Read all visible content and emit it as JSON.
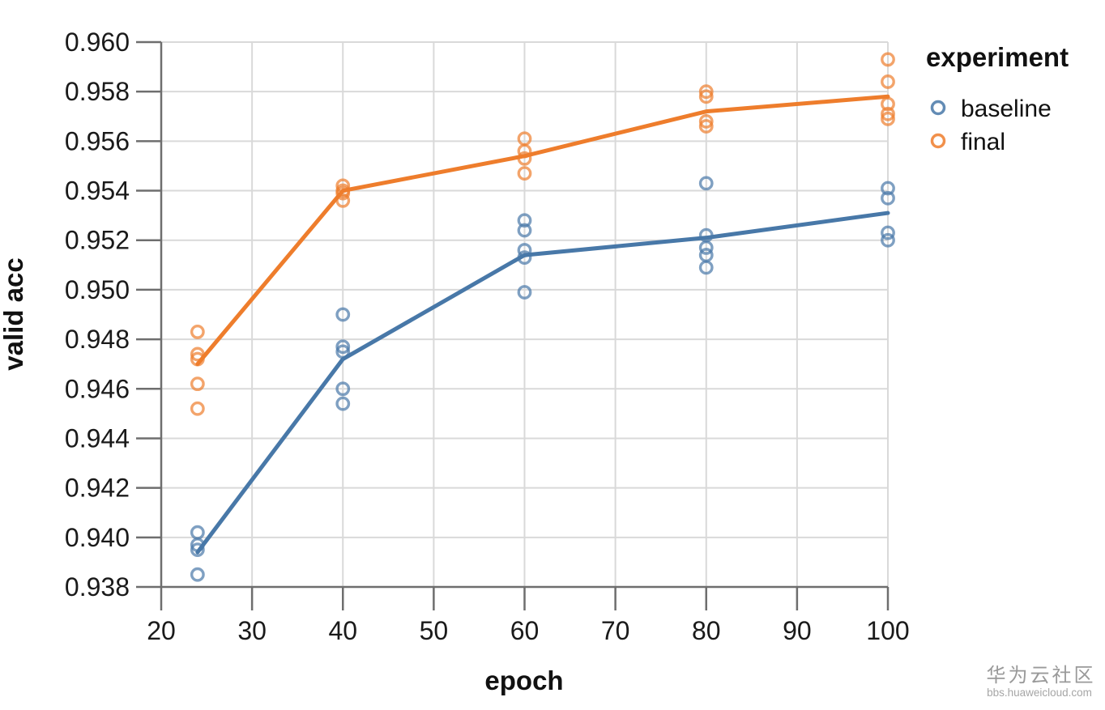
{
  "watermark": {
    "title": "华为云社区",
    "subtitle": "bbs.huaweicloud.com"
  },
  "chart_data": {
    "type": "scatter",
    "subtype": "scatter-with-trend-lines",
    "title": "",
    "xlabel": "epoch",
    "ylabel": "valid acc",
    "legend_title": "experiment",
    "legend_position": "right",
    "grid": true,
    "xlim": [
      20,
      100
    ],
    "ylim": [
      0.938,
      0.96
    ],
    "x_ticks": [
      20,
      30,
      40,
      50,
      60,
      70,
      80,
      90,
      100
    ],
    "y_ticks": [
      0.938,
      0.94,
      0.942,
      0.944,
      0.946,
      0.948,
      0.95,
      0.952,
      0.954,
      0.956,
      0.958,
      0.96
    ],
    "colors": {
      "grid": "#d9d9d9",
      "axis": "#6e6e6e",
      "tick_text": "#1a1a1a",
      "baseline": "#4878a8",
      "final": "#ee7d2c",
      "watermark": "#9a9a9a"
    },
    "series": [
      {
        "name": "baseline",
        "color": "#4878a8",
        "trend_line": [
          [
            24,
            0.9394
          ],
          [
            40,
            0.9472
          ],
          [
            60,
            0.9514
          ],
          [
            80,
            0.9521
          ],
          [
            100,
            0.9531
          ]
        ],
        "points": [
          [
            24,
            0.9402
          ],
          [
            24,
            0.9397
          ],
          [
            24,
            0.9395
          ],
          [
            24,
            0.9385
          ],
          [
            40,
            0.949
          ],
          [
            40,
            0.9477
          ],
          [
            40,
            0.9475
          ],
          [
            40,
            0.946
          ],
          [
            40,
            0.9454
          ],
          [
            60,
            0.9528
          ],
          [
            60,
            0.9524
          ],
          [
            60,
            0.9516
          ],
          [
            60,
            0.9513
          ],
          [
            60,
            0.9499
          ],
          [
            80,
            0.9543
          ],
          [
            80,
            0.9522
          ],
          [
            80,
            0.9517
          ],
          [
            80,
            0.9514
          ],
          [
            80,
            0.9509
          ],
          [
            100,
            0.9541
          ],
          [
            100,
            0.9537
          ],
          [
            100,
            0.9523
          ],
          [
            100,
            0.952
          ]
        ]
      },
      {
        "name": "final",
        "color": "#ee7d2c",
        "trend_line": [
          [
            24,
            0.947
          ],
          [
            40,
            0.954
          ],
          [
            60,
            0.9554
          ],
          [
            80,
            0.9572
          ],
          [
            100,
            0.9578
          ]
        ],
        "points": [
          [
            24,
            0.9483
          ],
          [
            24,
            0.9474
          ],
          [
            24,
            0.9472
          ],
          [
            24,
            0.9462
          ],
          [
            24,
            0.9452
          ],
          [
            40,
            0.9542
          ],
          [
            40,
            0.954
          ],
          [
            40,
            0.9539
          ],
          [
            40,
            0.9536
          ],
          [
            60,
            0.9561
          ],
          [
            60,
            0.9556
          ],
          [
            60,
            0.9553
          ],
          [
            60,
            0.9547
          ],
          [
            80,
            0.958
          ],
          [
            80,
            0.9578
          ],
          [
            80,
            0.9568
          ],
          [
            80,
            0.9566
          ],
          [
            100,
            0.9593
          ],
          [
            100,
            0.9584
          ],
          [
            100,
            0.9575
          ],
          [
            100,
            0.9571
          ],
          [
            100,
            0.9569
          ]
        ]
      }
    ]
  }
}
